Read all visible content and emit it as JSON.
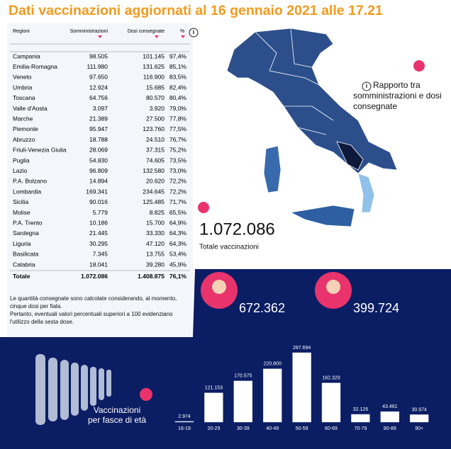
{
  "header": {
    "title": "Dati vaccinazioni aggiornati al 16 gennaio 2021 alle 17.21"
  },
  "table": {
    "columns": [
      "Regioni",
      "Somministrazioni",
      "Dosi consegnate",
      "%"
    ],
    "rows": [
      [
        "Campania",
        "98.505",
        "101.145",
        "97,4%"
      ],
      [
        "Emilia-Romagna",
        "111.980",
        "131.625",
        "85,1%"
      ],
      [
        "Veneto",
        "97.650",
        "116.900",
        "83,5%"
      ],
      [
        "Umbria",
        "12.924",
        "15.685",
        "82,4%"
      ],
      [
        "Toscana",
        "64.756",
        "80.570",
        "80,4%"
      ],
      [
        "Valle d'Aosta",
        "3.097",
        "3.920",
        "79,0%"
      ],
      [
        "Marche",
        "21.389",
        "27.500",
        "77,8%"
      ],
      [
        "Piemonte",
        "95.947",
        "123.760",
        "77,5%"
      ],
      [
        "Abruzzo",
        "18.788",
        "24.510",
        "76,7%"
      ],
      [
        "Friuli-Venezia Giulia",
        "28.069",
        "37.315",
        "75,2%"
      ],
      [
        "Puglia",
        "54.830",
        "74.605",
        "73,5%"
      ],
      [
        "Lazio",
        "96.809",
        "132.580",
        "73,0%"
      ],
      [
        "P.A. Bolzano",
        "14.894",
        "20.620",
        "72,2%"
      ],
      [
        "Lombardia",
        "169.341",
        "234.645",
        "72,2%"
      ],
      [
        "Sicilia",
        "90.016",
        "125.485",
        "71,7%"
      ],
      [
        "Molise",
        "5.779",
        "8.825",
        "65,5%"
      ],
      [
        "P.A. Trento",
        "10.186",
        "15.700",
        "64,9%"
      ],
      [
        "Sardegna",
        "21.445",
        "33.330",
        "64,3%"
      ],
      [
        "Liguria",
        "30.295",
        "47.120",
        "64,3%"
      ],
      [
        "Basilicata",
        "7.345",
        "13.755",
        "53,4%"
      ],
      [
        "Calabria",
        "18.041",
        "39.280",
        "45,9%"
      ]
    ],
    "total": [
      "Totale",
      "1.072.086",
      "1.408.875",
      "76,1%"
    ]
  },
  "notes": [
    "Le quantità consegnate sono calcolate considerando, al momento, cinque dosi per fiala.",
    "Pertanto, eventuali valori percentuali superiori a 100 evidenziano l'utilizzo della sesta dose."
  ],
  "map": {
    "caption": "Rapporto tra somministrazioni e dosi consegnate"
  },
  "summary": {
    "total": "1.072.086",
    "total_label": "Totale vaccinazioni",
    "women": "672.362",
    "men": "399.724"
  },
  "chart_data": {
    "type": "bar",
    "title": "Vaccinazioni per fasce di età",
    "categories": [
      "16-19",
      "20-29",
      "30-39",
      "40-49",
      "50-59",
      "60-69",
      "70-79",
      "80-89",
      "90+"
    ],
    "values": [
      2974,
      121153,
      170575,
      220800,
      287694,
      162329,
      32126,
      43461,
      30974
    ],
    "value_labels": [
      "2.974",
      "121.153",
      "170.575",
      "220.800",
      "287.694",
      "162.329",
      "32.126",
      "43.461",
      "30.974"
    ],
    "color": "#ffffff"
  }
}
